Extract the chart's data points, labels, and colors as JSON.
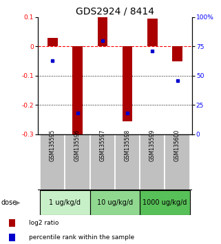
{
  "title": "GDS2924 / 8414",
  "samples": [
    "GSM135595",
    "GSM135596",
    "GSM135597",
    "GSM135598",
    "GSM135599",
    "GSM135600"
  ],
  "log2_ratios": [
    0.03,
    -0.3,
    0.1,
    -0.255,
    0.095,
    -0.05
  ],
  "percentile_ranks": [
    63,
    18,
    80,
    18,
    71,
    46
  ],
  "dose_groups": [
    {
      "label": "1 ug/kg/d",
      "samples": [
        0,
        1
      ],
      "color": "#c8f0c8"
    },
    {
      "label": "10 ug/kg/d",
      "samples": [
        2,
        3
      ],
      "color": "#90d890"
    },
    {
      "label": "1000 ug/kg/d",
      "samples": [
        4,
        5
      ],
      "color": "#58c058"
    }
  ],
  "bar_color": "#aa0000",
  "dot_color": "#0000cc",
  "ylim_left": [
    -0.3,
    0.1
  ],
  "ylim_right": [
    0,
    100
  ],
  "yticks_left": [
    -0.3,
    -0.2,
    -0.1,
    0.0,
    0.1
  ],
  "yticks_right": [
    0,
    25,
    50,
    75,
    100
  ],
  "yticklabels_left": [
    "-0.3",
    "-0.2",
    "-0.1",
    "0",
    "0.1"
  ],
  "yticklabels_right": [
    "0",
    "25",
    "50",
    "75",
    "100%"
  ],
  "hline_y": 0,
  "dotted_lines": [
    -0.1,
    -0.2
  ],
  "bar_width": 0.4,
  "sample_label_fontsize": 5.5,
  "dose_label_fontsize": 7,
  "title_fontsize": 10,
  "legend_fontsize": 6.5
}
